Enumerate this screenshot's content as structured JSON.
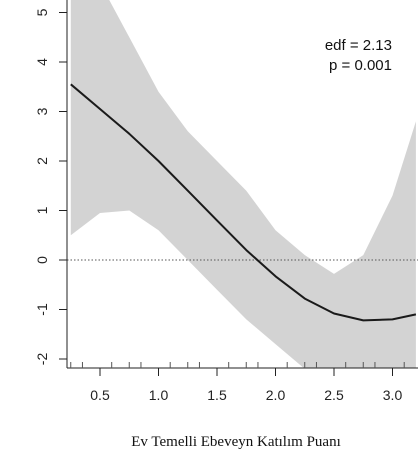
{
  "chart_data": {
    "type": "line",
    "xlabel": "Ev Temelli Ebeveyn Katılım Puanı",
    "ylabel": "",
    "x_ticks": [
      "0.5",
      "1.0",
      "1.5",
      "2.0",
      "2.5",
      "3.0"
    ],
    "y_ticks": [
      "-2",
      "-1",
      "0",
      "1",
      "2",
      "3",
      "4",
      "5"
    ],
    "xlim": [
      0.2,
      3.2
    ],
    "ylim": [
      -2.2,
      5.2
    ],
    "annotations": [
      "edf = 2.13",
      "p = 0.001"
    ],
    "reference_line_y": 0,
    "series": [
      {
        "x": [
          0.25,
          0.5,
          0.75,
          1.0,
          1.25,
          1.5,
          1.75,
          2.0,
          2.25,
          2.5,
          2.75,
          3.0,
          3.2
        ],
        "y": [
          3.55,
          3.05,
          2.55,
          2.0,
          1.4,
          0.8,
          0.2,
          -0.33,
          -0.78,
          -1.08,
          -1.22,
          -1.2,
          -1.1
        ],
        "lower": [
          0.5,
          0.95,
          1.0,
          0.6,
          0.0,
          -0.6,
          -1.2,
          -1.7,
          -2.2,
          -2.6,
          -2.9,
          -3.2,
          -3.3
        ],
        "upper": [
          6.6,
          5.6,
          4.5,
          3.4,
          2.6,
          2.0,
          1.4,
          0.6,
          0.1,
          -0.28,
          0.1,
          1.3,
          2.8
        ]
      }
    ],
    "colors": {
      "band": "#d3d3d3",
      "line": "#1a1a1a",
      "reference": "#555555",
      "axis": "#222222"
    }
  }
}
